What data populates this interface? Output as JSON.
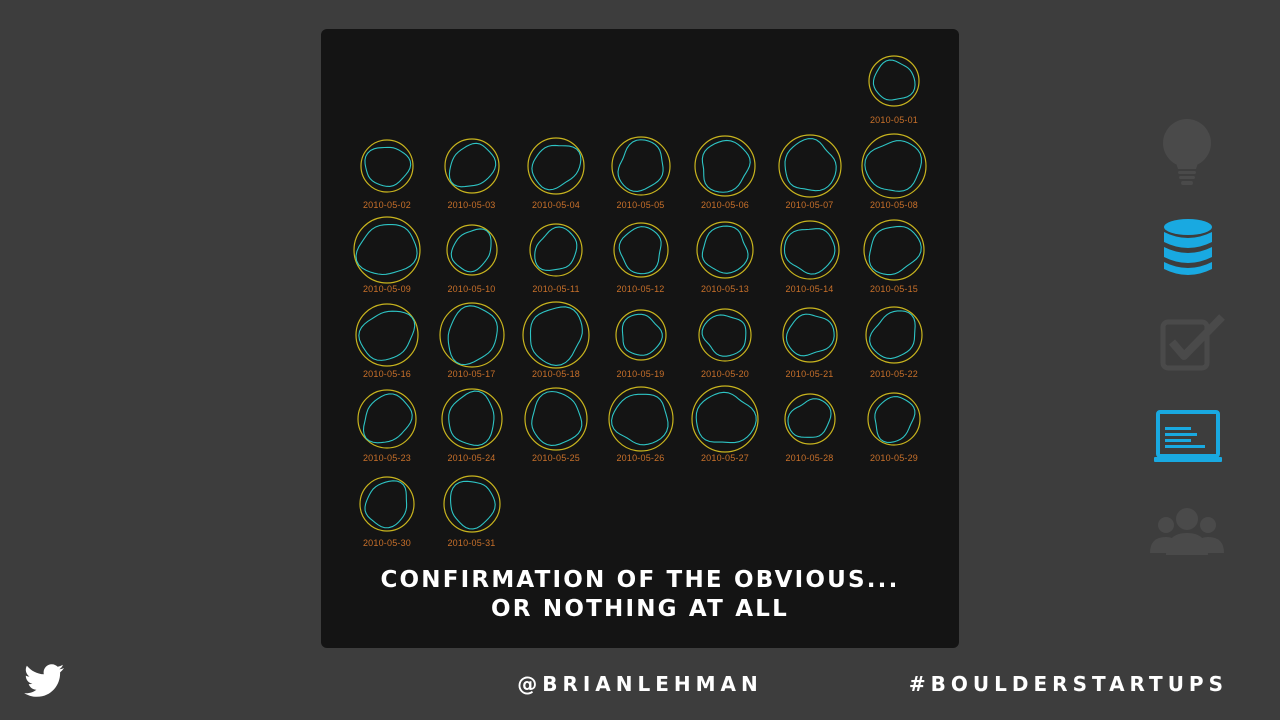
{
  "slide": {
    "caption_line1": "CONFIRMATION OF THE OBVIOUS...",
    "caption_line2": "OR NOTHING AT ALL",
    "handle": "@BRIANLEHMAN",
    "hashtag": "#BOULDERSTARTUPS"
  },
  "colors": {
    "background": "#3d3d3d",
    "panel": "#141414",
    "ring": "#c8b41e",
    "trace": "#2ec4c4",
    "date": "#c8702a",
    "accent": "#19a9e1",
    "muted_icon": "#4a4a4a"
  },
  "chart_data": {
    "type": "small-multiples",
    "days": [
      {
        "date": "2010-05-01",
        "col": 6,
        "row": 0
      },
      {
        "date": "2010-05-02",
        "col": 0,
        "row": 1
      },
      {
        "date": "2010-05-03",
        "col": 1,
        "row": 1
      },
      {
        "date": "2010-05-04",
        "col": 2,
        "row": 1
      },
      {
        "date": "2010-05-05",
        "col": 3,
        "row": 1
      },
      {
        "date": "2010-05-06",
        "col": 4,
        "row": 1
      },
      {
        "date": "2010-05-07",
        "col": 5,
        "row": 1
      },
      {
        "date": "2010-05-08",
        "col": 6,
        "row": 1
      },
      {
        "date": "2010-05-09",
        "col": 0,
        "row": 2
      },
      {
        "date": "2010-05-10",
        "col": 1,
        "row": 2
      },
      {
        "date": "2010-05-11",
        "col": 2,
        "row": 2
      },
      {
        "date": "2010-05-12",
        "col": 3,
        "row": 2
      },
      {
        "date": "2010-05-13",
        "col": 4,
        "row": 2
      },
      {
        "date": "2010-05-14",
        "col": 5,
        "row": 2
      },
      {
        "date": "2010-05-15",
        "col": 6,
        "row": 2
      },
      {
        "date": "2010-05-16",
        "col": 0,
        "row": 3
      },
      {
        "date": "2010-05-17",
        "col": 1,
        "row": 3
      },
      {
        "date": "2010-05-18",
        "col": 2,
        "row": 3
      },
      {
        "date": "2010-05-19",
        "col": 3,
        "row": 3
      },
      {
        "date": "2010-05-20",
        "col": 4,
        "row": 3
      },
      {
        "date": "2010-05-21",
        "col": 5,
        "row": 3
      },
      {
        "date": "2010-05-22",
        "col": 6,
        "row": 3
      },
      {
        "date": "2010-05-23",
        "col": 0,
        "row": 4
      },
      {
        "date": "2010-05-24",
        "col": 1,
        "row": 4
      },
      {
        "date": "2010-05-25",
        "col": 2,
        "row": 4
      },
      {
        "date": "2010-05-26",
        "col": 3,
        "row": 4
      },
      {
        "date": "2010-05-27",
        "col": 4,
        "row": 4
      },
      {
        "date": "2010-05-28",
        "col": 5,
        "row": 4
      },
      {
        "date": "2010-05-29",
        "col": 6,
        "row": 4
      },
      {
        "date": "2010-05-30",
        "col": 0,
        "row": 5
      },
      {
        "date": "2010-05-31",
        "col": 1,
        "row": 5
      }
    ]
  },
  "sidebar": {
    "icons": [
      {
        "name": "lightbulb-icon",
        "active": false
      },
      {
        "name": "database-icon",
        "active": true
      },
      {
        "name": "checkbox-icon",
        "active": false
      },
      {
        "name": "laptop-icon",
        "active": true
      },
      {
        "name": "people-icon",
        "active": false
      }
    ]
  }
}
